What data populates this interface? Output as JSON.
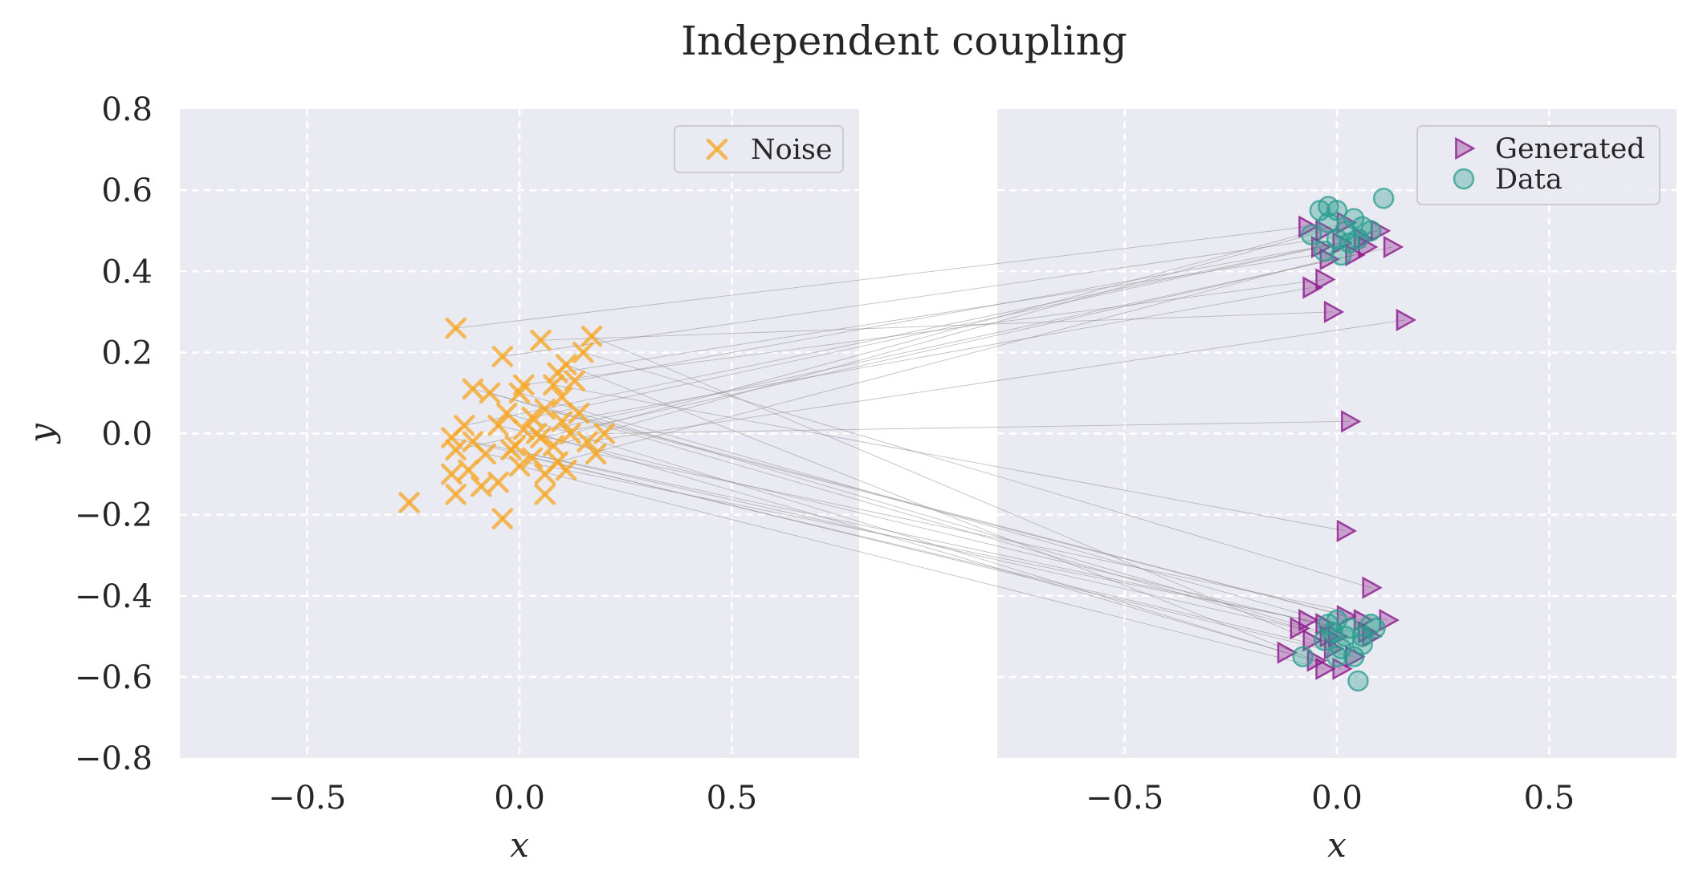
{
  "chart_data": {
    "type": "scatter",
    "title": "Independent coupling",
    "colors": {
      "background": "#eaeaf2",
      "grid": "#ffffff",
      "noise": "#f5a623",
      "generated": "#8b1a8b",
      "data": "#2a9d8f",
      "link": "#8c8c8c"
    },
    "grid": true,
    "panels": [
      {
        "xlabel": "x",
        "ylabel": "y",
        "xlim": [
          -0.8,
          0.8
        ],
        "ylim": [
          -0.8,
          0.8
        ],
        "xticks": [
          -0.5,
          0.0,
          0.5
        ],
        "xtick_labels": [
          "−0.5",
          "0.0",
          "0.5"
        ],
        "yticks": [
          -0.8,
          -0.6,
          -0.4,
          -0.2,
          0.0,
          0.2,
          0.4,
          0.6,
          0.8
        ],
        "ytick_labels": [
          "−0.8",
          "−0.6",
          "−0.4",
          "−0.2",
          "0.0",
          "0.2",
          "0.4",
          "0.6",
          "0.8"
        ],
        "legend": {
          "placement": "top-right",
          "entries": [
            "Noise"
          ]
        }
      },
      {
        "xlabel": "x",
        "xlim": [
          -0.8,
          0.8
        ],
        "ylim": [
          -0.8,
          0.8
        ],
        "xticks": [
          -0.5,
          0.0,
          0.5
        ],
        "xtick_labels": [
          "−0.5",
          "0.0",
          "0.5"
        ],
        "legend": {
          "placement": "top-right",
          "entries": [
            "Generated",
            "Data"
          ]
        }
      }
    ],
    "series": [
      {
        "name": "Noise",
        "panel": 0,
        "marker": "x",
        "points": [
          [
            -0.15,
            0.26
          ],
          [
            0.05,
            0.23
          ],
          [
            0.17,
            0.24
          ],
          [
            -0.04,
            0.19
          ],
          [
            0.15,
            0.2
          ],
          [
            0.11,
            0.17
          ],
          [
            0.09,
            0.15
          ],
          [
            -0.11,
            0.11
          ],
          [
            -0.07,
            0.1
          ],
          [
            0.01,
            0.12
          ],
          [
            0.0,
            0.1
          ],
          [
            0.13,
            0.13
          ],
          [
            0.08,
            0.12
          ],
          [
            -0.03,
            0.05
          ],
          [
            0.03,
            0.04
          ],
          [
            0.06,
            0.06
          ],
          [
            -0.05,
            0.02
          ],
          [
            0.1,
            0.03
          ],
          [
            0.14,
            0.05
          ],
          [
            0.12,
            0.0
          ],
          [
            0.2,
            0.0
          ],
          [
            -0.16,
            -0.01
          ],
          [
            -0.13,
            0.02
          ],
          [
            -0.11,
            -0.02
          ],
          [
            0.01,
            0.01
          ],
          [
            0.05,
            -0.01
          ],
          [
            -0.02,
            -0.04
          ],
          [
            0.08,
            -0.03
          ],
          [
            0.16,
            -0.02
          ],
          [
            0.03,
            -0.06
          ],
          [
            -0.15,
            -0.04
          ],
          [
            -0.08,
            -0.05
          ],
          [
            0.0,
            -0.08
          ],
          [
            0.09,
            -0.07
          ],
          [
            0.18,
            -0.05
          ],
          [
            -0.16,
            -0.1
          ],
          [
            -0.12,
            -0.09
          ],
          [
            -0.05,
            -0.12
          ],
          [
            0.06,
            -0.1
          ],
          [
            0.11,
            -0.09
          ],
          [
            -0.15,
            -0.15
          ],
          [
            -0.09,
            -0.13
          ],
          [
            0.06,
            -0.15
          ],
          [
            -0.26,
            -0.17
          ],
          [
            -0.04,
            -0.21
          ],
          [
            0.04,
            0.0
          ],
          [
            0.1,
            0.09
          ],
          [
            -0.01,
            -0.03
          ]
        ]
      },
      {
        "name": "Generated",
        "panel": 1,
        "marker": "triangle-right",
        "points": [
          [
            -0.07,
            0.51
          ],
          [
            -0.03,
            0.5
          ],
          [
            0.02,
            0.52
          ],
          [
            0.06,
            0.48
          ],
          [
            0.1,
            0.5
          ],
          [
            0.13,
            0.46
          ],
          [
            -0.04,
            0.46
          ],
          [
            0.01,
            0.47
          ],
          [
            0.07,
            0.46
          ],
          [
            -0.02,
            0.43
          ],
          [
            0.04,
            0.44
          ],
          [
            -0.06,
            0.36
          ],
          [
            -0.03,
            0.38
          ],
          [
            -0.01,
            0.3
          ],
          [
            0.16,
            0.28
          ],
          [
            0.03,
            0.03
          ],
          [
            0.02,
            -0.24
          ],
          [
            0.08,
            -0.38
          ],
          [
            -0.07,
            -0.46
          ],
          [
            -0.03,
            -0.47
          ],
          [
            0.02,
            -0.45
          ],
          [
            0.06,
            -0.46
          ],
          [
            0.12,
            -0.46
          ],
          [
            -0.09,
            -0.48
          ],
          [
            0.0,
            -0.5
          ],
          [
            0.07,
            -0.49
          ],
          [
            -0.06,
            -0.51
          ],
          [
            -0.01,
            -0.53
          ],
          [
            0.04,
            -0.55
          ],
          [
            -0.12,
            -0.54
          ],
          [
            -0.05,
            -0.56
          ],
          [
            -0.03,
            -0.58
          ],
          [
            0.01,
            -0.58
          ],
          [
            0.08,
            -0.5
          ],
          [
            -0.02,
            -0.5
          ]
        ]
      },
      {
        "name": "Data",
        "panel": 1,
        "marker": "circle",
        "points": [
          [
            -0.04,
            0.55
          ],
          [
            0.0,
            0.55
          ],
          [
            0.04,
            0.53
          ],
          [
            0.11,
            0.58
          ],
          [
            -0.02,
            0.52
          ],
          [
            0.02,
            0.5
          ],
          [
            0.06,
            0.51
          ],
          [
            -0.06,
            0.49
          ],
          [
            0.0,
            0.48
          ],
          [
            0.03,
            0.47
          ],
          [
            -0.03,
            0.45
          ],
          [
            0.01,
            0.44
          ],
          [
            0.08,
            0.5
          ],
          [
            -0.02,
            0.56
          ],
          [
            0.05,
            0.48
          ],
          [
            0.0,
            -0.46
          ],
          [
            0.03,
            -0.48
          ],
          [
            0.08,
            -0.47
          ],
          [
            -0.01,
            -0.49
          ],
          [
            0.02,
            -0.5
          ],
          [
            0.06,
            -0.52
          ],
          [
            -0.03,
            -0.51
          ],
          [
            0.01,
            -0.53
          ],
          [
            0.04,
            -0.55
          ],
          [
            -0.08,
            -0.55
          ],
          [
            0.05,
            -0.61
          ],
          [
            0.09,
            -0.48
          ],
          [
            -0.02,
            -0.47
          ],
          [
            0.0,
            -0.55
          ],
          [
            0.06,
            -0.5
          ]
        ]
      }
    ]
  }
}
